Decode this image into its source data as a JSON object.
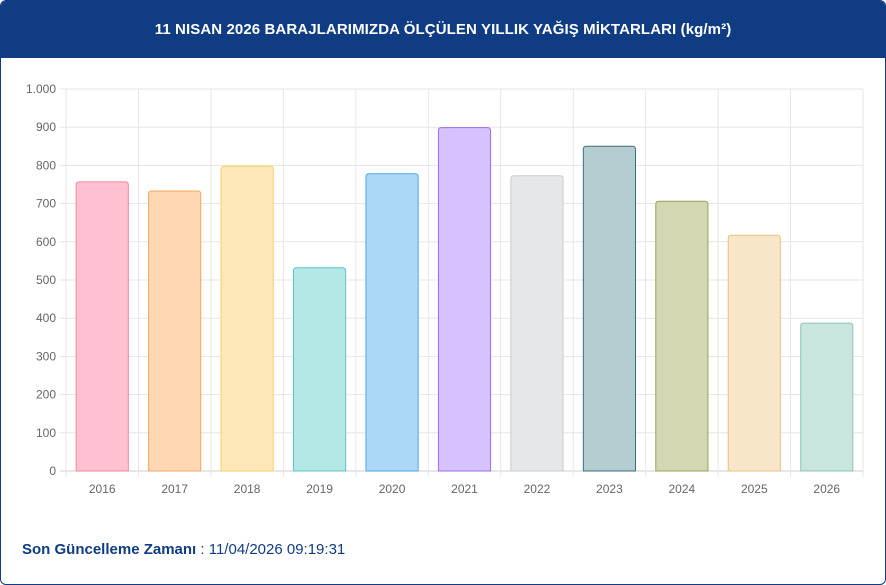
{
  "header": {
    "title": "11 NISAN 2026 BARAJLARIMIZDA ÖLÇÜLEN YILLIK YAĞIŞ MİKTARLARI (kg/m²)"
  },
  "footer": {
    "label": "Son Güncelleme Zamanı",
    "separator": ":",
    "value": "11/04/2026 09:19:31"
  },
  "chart_data": {
    "type": "bar",
    "title": "11 NISAN 2026 BARAJLARIMIZDA ÖLÇÜLEN YILLIK YAĞIŞ MİKTARLARI (kg/m²)",
    "xlabel": "",
    "ylabel": "",
    "categories": [
      "2016",
      "2017",
      "2018",
      "2019",
      "2020",
      "2021",
      "2022",
      "2023",
      "2024",
      "2025",
      "2026"
    ],
    "values": [
      757,
      733,
      798,
      532,
      778,
      899,
      773,
      850,
      706,
      617,
      387
    ],
    "ylim": [
      0,
      1000
    ],
    "yticks": [
      0,
      100,
      200,
      300,
      400,
      500,
      600,
      700,
      800,
      900,
      1000
    ],
    "ytick_labels": [
      "0",
      "100",
      "200",
      "300",
      "400",
      "500",
      "600",
      "700",
      "800",
      "900",
      "1.000"
    ],
    "grid": true,
    "legend": "none",
    "colors": {
      "fill": [
        "#ffc1d1",
        "#ffd8b3",
        "#ffe8b8",
        "#b3e8e6",
        "#acd8f7",
        "#d6c2fe",
        "#e6e7e9",
        "#b3cdd1",
        "#d3d8b2",
        "#f7e6c8",
        "#c9e5df"
      ],
      "stroke": [
        "#f3849d",
        "#f4a65f",
        "#f7cf6e",
        "#5cc4c2",
        "#4ba8e6",
        "#9a6ee8",
        "#c9cbcf",
        "#3d6f78",
        "#9aa356",
        "#e8c17f",
        "#8ac6b6"
      ]
    }
  }
}
